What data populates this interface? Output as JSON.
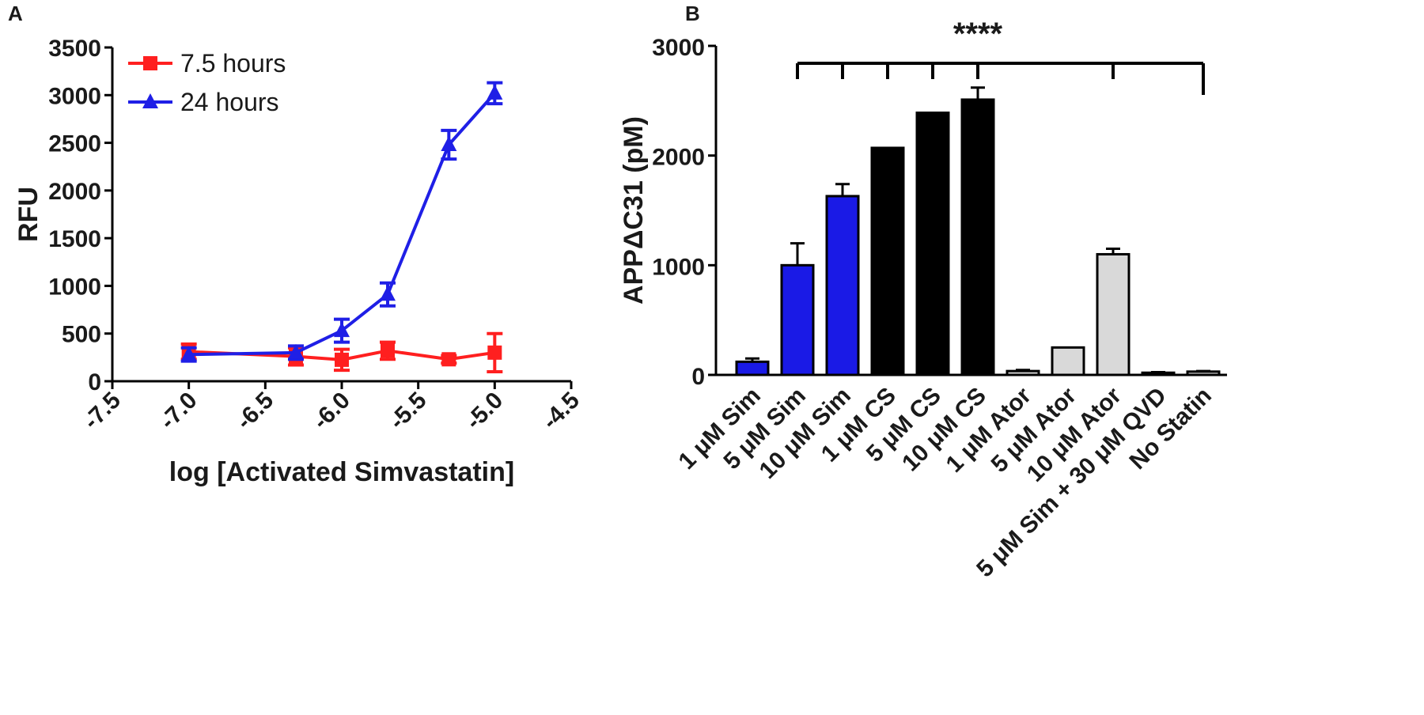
{
  "panels": {
    "a_label": "A",
    "b_label": "B"
  },
  "chart_data": [
    {
      "type": "line",
      "xlabel": "log [Activated Simvastatin]",
      "ylabel": "RFU",
      "xlim": [
        -7.5,
        -4.5
      ],
      "ylim": [
        0,
        3500
      ],
      "xticks": [
        -7.5,
        -7.0,
        -6.5,
        -6.0,
        -5.5,
        -5.0,
        -4.5
      ],
      "xtick_labels": [
        "-7.5",
        "-7.0",
        "-6.5",
        "-6.0",
        "-5.5",
        "-5.0",
        "-4.5"
      ],
      "yticks": [
        0,
        500,
        1000,
        1500,
        2000,
        2500,
        3000,
        3500
      ],
      "ytick_labels": [
        "0",
        "500",
        "1000",
        "1500",
        "2000",
        "2500",
        "3000",
        "3500"
      ],
      "legend_position": "top-left",
      "series": [
        {
          "name": "7.5 hours",
          "color": "#ff1f1f",
          "marker": "square",
          "x": [
            -7.0,
            -6.3,
            -6.0,
            -5.7,
            -5.3,
            -5.0
          ],
          "y": [
            310,
            260,
            225,
            320,
            230,
            300
          ],
          "err": [
            80,
            90,
            110,
            90,
            40,
            200
          ]
        },
        {
          "name": "24 hours",
          "color": "#1f1fe6",
          "marker": "triangle",
          "x": [
            -7.0,
            -6.3,
            -6.0,
            -5.7,
            -5.3,
            -5.0
          ],
          "y": [
            280,
            300,
            530,
            910,
            2480,
            3020
          ],
          "err": [
            70,
            70,
            120,
            120,
            150,
            110
          ]
        }
      ]
    },
    {
      "type": "bar",
      "ylabel": "APPΔC31 (pM)",
      "ylim": [
        0,
        3000
      ],
      "yticks": [
        0,
        1000,
        2000,
        3000
      ],
      "ytick_labels": [
        "0",
        "1000",
        "2000",
        "3000"
      ],
      "categories": [
        "1 μM Sim",
        "5 μM Sim",
        "10 μM Sim",
        "1 μM CS",
        "5 μM CS",
        "10 μM CS",
        "1 μM Ator",
        "5 μM Ator",
        "10 μM Ator",
        "5 μM Sim + 30 μM QVD",
        "No Statin"
      ],
      "values": [
        120,
        1000,
        1630,
        2070,
        2390,
        2510,
        35,
        250,
        1100,
        20,
        30
      ],
      "errors": [
        30,
        200,
        110,
        0,
        0,
        110,
        10,
        0,
        50,
        5,
        5
      ],
      "colors": [
        "#1a1ae6",
        "#1a1ae6",
        "#1a1ae6",
        "#000000",
        "#000000",
        "#000000",
        "#d9d9d9",
        "#d9d9d9",
        "#d9d9d9",
        "#d9d9d9",
        "#d9d9d9"
      ],
      "significance": {
        "label": "****",
        "reference": "No Statin",
        "compared": [
          "5 μM Sim",
          "10 μM Sim",
          "1 μM CS",
          "5 μM CS",
          "10 μM CS",
          "10 μM Ator"
        ]
      }
    }
  ]
}
